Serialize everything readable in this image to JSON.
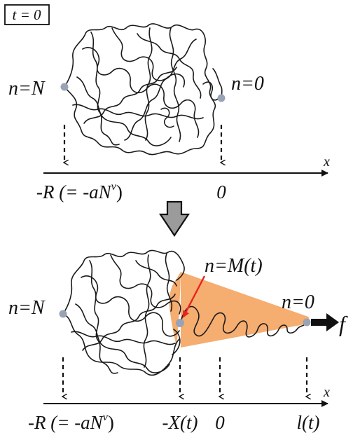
{
  "frame_label": "t = 0",
  "top": {
    "end_left_label": "n=N",
    "end_right_label": "n=0",
    "axis_var": "x",
    "tick_left_label": "-R (= -aN",
    "tick_left_exp": "ν",
    "tick_left_close": ")",
    "tick_zero_label": "0"
  },
  "bottom": {
    "end_left_label": "n=N",
    "middle_label": "n=M(t)",
    "end_right_label": "n=0",
    "force_label": "f",
    "axis_var": "x",
    "tick_left_label": "-R (= -aN",
    "tick_left_exp": "ν",
    "tick_left_close": ")",
    "tick_x_label": "-X(t)",
    "tick_zero_label": "0",
    "tick_l_label": "l(t)"
  },
  "colors": {
    "chain": "#1a1a1a",
    "bead": "#9aa3b5",
    "cone": "#f4a968",
    "pointer": "#e8231f",
    "transition_arrow": "#9b9b9b",
    "force_arrow": "#111111"
  }
}
